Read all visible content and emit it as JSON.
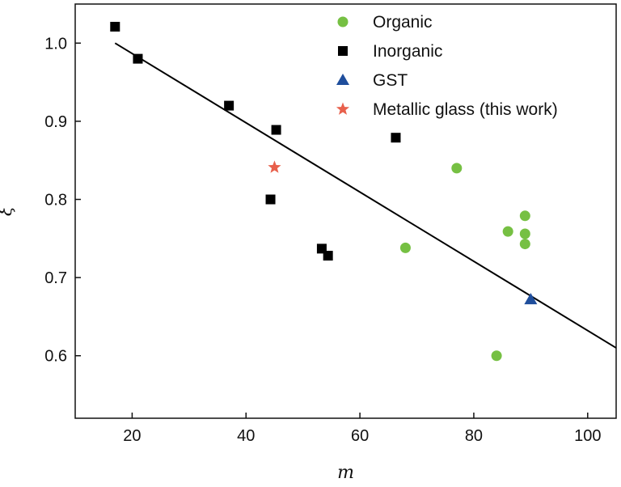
{
  "chart_data": {
    "type": "scatter",
    "xlabel": "m",
    "ylabel": "ξ",
    "xlim": [
      10,
      105
    ],
    "ylim": [
      0.52,
      1.05
    ],
    "xticks": [
      20,
      40,
      60,
      80,
      100
    ],
    "yticks": [
      0.6,
      0.7,
      0.8,
      0.9,
      1.0
    ],
    "xtick_labels": [
      "20",
      "40",
      "60",
      "80",
      "100"
    ],
    "ytick_labels": [
      "0.6",
      "0.7",
      "0.8",
      "0.9",
      "1.0"
    ],
    "grid": false,
    "legend_position": "top-right",
    "series": [
      {
        "name": "Organic",
        "marker": "circle",
        "color": "#76c043",
        "points": [
          [
            77,
            0.84
          ],
          [
            68,
            0.738
          ],
          [
            86,
            0.759
          ],
          [
            89,
            0.779
          ],
          [
            89,
            0.756
          ],
          [
            89,
            0.743
          ],
          [
            84,
            0.6
          ]
        ]
      },
      {
        "name": "Inorganic",
        "marker": "square",
        "color": "#000000",
        "points": [
          [
            17,
            1.021
          ],
          [
            21,
            0.98
          ],
          [
            37,
            0.92
          ],
          [
            45.3,
            0.889
          ],
          [
            44.3,
            0.8
          ],
          [
            53.3,
            0.737
          ],
          [
            54.4,
            0.728
          ],
          [
            66.3,
            0.879
          ]
        ]
      },
      {
        "name": "GST",
        "marker": "triangle",
        "color": "#1f4e9c",
        "points": [
          [
            90,
            0.672
          ]
        ]
      },
      {
        "name": "Metallic glass (this work)",
        "marker": "star",
        "color": "#e8604c",
        "points": [
          [
            45,
            0.841
          ]
        ]
      }
    ],
    "fit_line": {
      "points": [
        [
          17,
          1.0
        ],
        [
          105,
          0.61
        ]
      ],
      "color": "#000000"
    }
  }
}
